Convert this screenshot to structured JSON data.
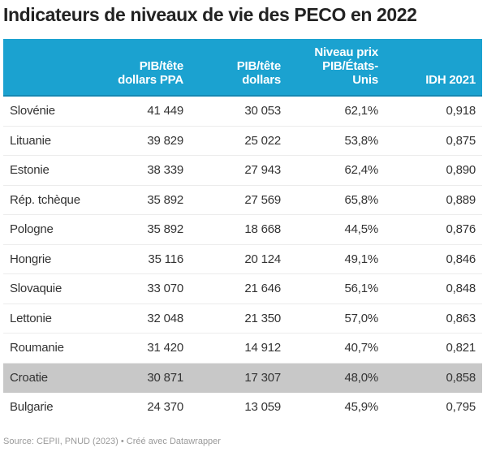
{
  "title": "Indicateurs de niveaux de vie des PECO en 2022",
  "colors": {
    "header_bg": "#1ba2d0",
    "highlight_row": "#c8c8c8"
  },
  "chart_data": {
    "type": "table",
    "title": "Indicateurs de niveaux de vie des PECO en 2022",
    "columns": [
      "",
      "PIB/tête dollars PPA",
      "PIB/tête dollars",
      "Niveau prix PIB/États-Unis",
      "IDH 2021"
    ],
    "header_lines": [
      [
        ""
      ],
      [
        "PIB/tête",
        "dollars PPA"
      ],
      [
        "PIB/tête",
        "dollars"
      ],
      [
        "Niveau prix",
        "PIB/États-",
        "Unis"
      ],
      [
        "IDH 2021"
      ]
    ],
    "rows": [
      {
        "country": "Slovénie",
        "pib_ppa": "41 449",
        "pib_usd": "30 053",
        "niveau_prix": "62,1%",
        "idh": "0,918",
        "highlight": false
      },
      {
        "country": "Lituanie",
        "pib_ppa": "39 829",
        "pib_usd": "25 022",
        "niveau_prix": "53,8%",
        "idh": "0,875",
        "highlight": false
      },
      {
        "country": "Estonie",
        "pib_ppa": "38 339",
        "pib_usd": "27 943",
        "niveau_prix": "62,4%",
        "idh": "0,890",
        "highlight": false
      },
      {
        "country": "Rép. tchèque",
        "pib_ppa": "35 892",
        "pib_usd": "27 569",
        "niveau_prix": "65,8%",
        "idh": "0,889",
        "highlight": false
      },
      {
        "country": "Pologne",
        "pib_ppa": "35 892",
        "pib_usd": "18 668",
        "niveau_prix": "44,5%",
        "idh": "0,876",
        "highlight": false
      },
      {
        "country": "Hongrie",
        "pib_ppa": "35 116",
        "pib_usd": "20 124",
        "niveau_prix": "49,1%",
        "idh": "0,846",
        "highlight": false
      },
      {
        "country": "Slovaquie",
        "pib_ppa": "33 070",
        "pib_usd": "21 646",
        "niveau_prix": "56,1%",
        "idh": "0,848",
        "highlight": false
      },
      {
        "country": "Lettonie",
        "pib_ppa": "32 048",
        "pib_usd": "21 350",
        "niveau_prix": "57,0%",
        "idh": "0,863",
        "highlight": false
      },
      {
        "country": "Roumanie",
        "pib_ppa": "31 420",
        "pib_usd": "14 912",
        "niveau_prix": "40,7%",
        "idh": "0,821",
        "highlight": false
      },
      {
        "country": "Croatie",
        "pib_ppa": "30 871",
        "pib_usd": "17 307",
        "niveau_prix": "48,0%",
        "idh": "0,858",
        "highlight": true
      },
      {
        "country": "Bulgarie",
        "pib_ppa": "24 370",
        "pib_usd": "13 059",
        "niveau_prix": "45,9%",
        "idh": "0,795",
        "highlight": false
      }
    ]
  },
  "footer": "Source: CEPII, PNUD (2023) • Créé avec Datawrapper"
}
